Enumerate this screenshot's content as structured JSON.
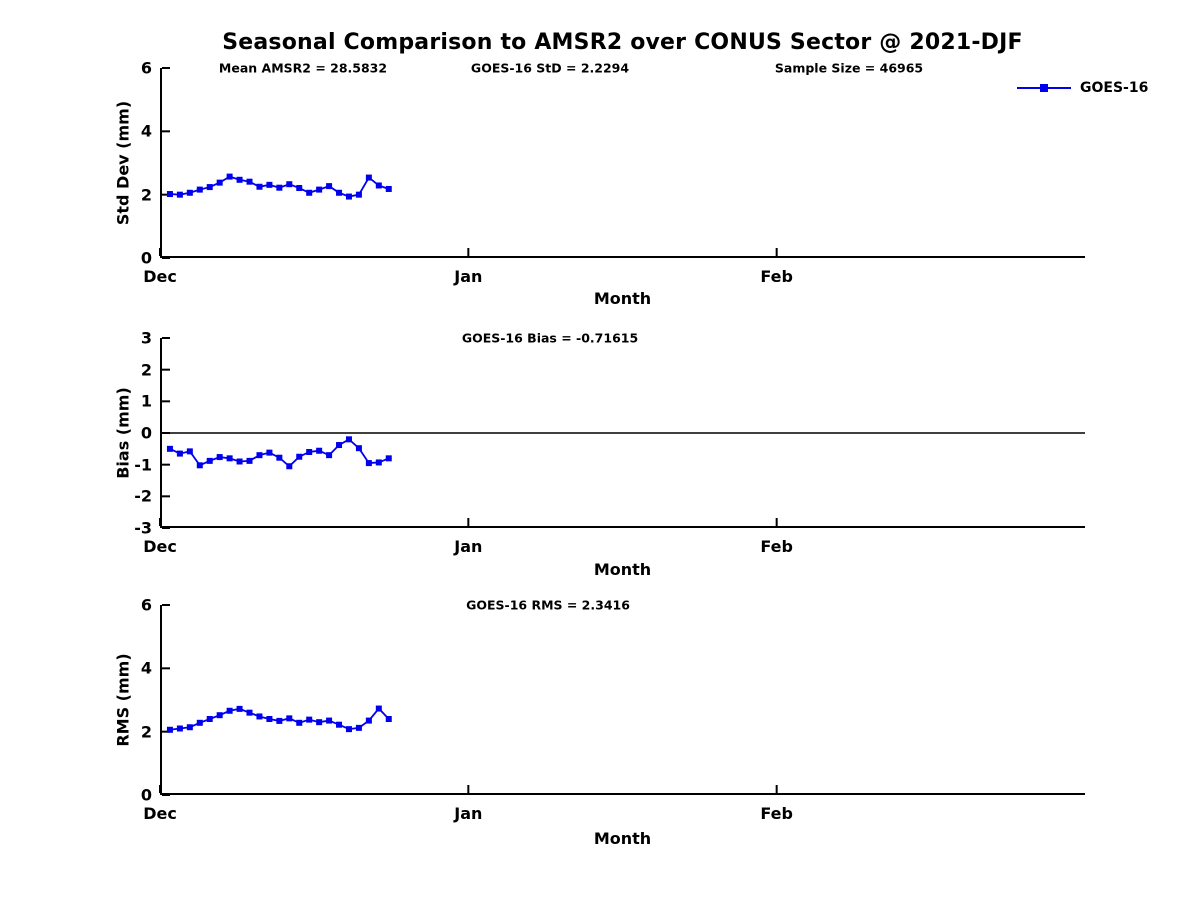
{
  "title": "Seasonal Comparison to AMSR2 over CONUS Sector @ 2021-DJF",
  "legend": {
    "label": "GOES-16"
  },
  "colors": {
    "series": "#0000EE",
    "axis": "#000000"
  },
  "chart_data": [
    {
      "type": "line",
      "panel": "std-dev",
      "annotations": [
        "Mean AMSR2 = 28.5832",
        "GOES-16 StD = 2.2294",
        "Sample Size = 46965"
      ],
      "ylabel": "Std Dev (mm)",
      "xlabel": "Month",
      "ylim": [
        0,
        6
      ],
      "yticks": [
        0,
        2,
        4,
        6
      ],
      "xtick_labels": [
        "Dec",
        "Jan",
        "Feb"
      ],
      "xtick_days": [
        0,
        31,
        62
      ],
      "xlim_days": [
        0,
        93
      ],
      "zero_line": false,
      "grid": false,
      "series": [
        {
          "name": "GOES-16",
          "color": "#0000EE",
          "marker": "square",
          "x_days": [
            1,
            2,
            3,
            4,
            5,
            6,
            7,
            8,
            9,
            10,
            11,
            12,
            13,
            14,
            15,
            16,
            17,
            18,
            19,
            20,
            21,
            22,
            23
          ],
          "values": [
            2.02,
            2.0,
            2.06,
            2.16,
            2.24,
            2.38,
            2.57,
            2.47,
            2.41,
            2.25,
            2.31,
            2.22,
            2.33,
            2.21,
            2.06,
            2.16,
            2.27,
            2.06,
            1.94,
            2.0,
            2.54,
            2.29,
            2.18
          ]
        }
      ]
    },
    {
      "type": "line",
      "panel": "bias",
      "annotations": [
        "GOES-16 Bias = -0.71615"
      ],
      "ylabel": "Bias (mm)",
      "xlabel": "Month",
      "ylim": [
        -3,
        3
      ],
      "yticks": [
        -3,
        -2,
        -1,
        0,
        1,
        2,
        3
      ],
      "xtick_labels": [
        "Dec",
        "Jan",
        "Feb"
      ],
      "xtick_days": [
        0,
        31,
        62
      ],
      "xlim_days": [
        0,
        93
      ],
      "zero_line": true,
      "grid": false,
      "series": [
        {
          "name": "GOES-16",
          "color": "#0000EE",
          "marker": "square",
          "x_days": [
            1,
            2,
            3,
            4,
            5,
            6,
            7,
            8,
            9,
            10,
            11,
            12,
            13,
            14,
            15,
            16,
            17,
            18,
            19,
            20,
            21,
            22,
            23
          ],
          "values": [
            -0.5,
            -0.65,
            -0.58,
            -1.02,
            -0.88,
            -0.76,
            -0.8,
            -0.9,
            -0.88,
            -0.7,
            -0.62,
            -0.78,
            -1.05,
            -0.75,
            -0.6,
            -0.56,
            -0.7,
            -0.38,
            -0.2,
            -0.48,
            -0.95,
            -0.93,
            -0.8
          ]
        }
      ]
    },
    {
      "type": "line",
      "panel": "rms",
      "annotations": [
        "GOES-16 RMS = 2.3416"
      ],
      "ylabel": "RMS (mm)",
      "xlabel": "Month",
      "ylim": [
        0,
        6
      ],
      "yticks": [
        0,
        2,
        4,
        6
      ],
      "xtick_labels": [
        "Dec",
        "Jan",
        "Feb"
      ],
      "xtick_days": [
        0,
        31,
        62
      ],
      "xlim_days": [
        0,
        93
      ],
      "zero_line": false,
      "grid": false,
      "series": [
        {
          "name": "GOES-16",
          "color": "#0000EE",
          "marker": "square",
          "x_days": [
            1,
            2,
            3,
            4,
            5,
            6,
            7,
            8,
            9,
            10,
            11,
            12,
            13,
            14,
            15,
            16,
            17,
            18,
            19,
            20,
            21,
            22,
            23
          ],
          "values": [
            2.06,
            2.1,
            2.14,
            2.28,
            2.4,
            2.52,
            2.66,
            2.72,
            2.6,
            2.48,
            2.4,
            2.34,
            2.42,
            2.28,
            2.38,
            2.3,
            2.35,
            2.22,
            2.08,
            2.12,
            2.35,
            2.73,
            2.4
          ]
        }
      ]
    }
  ]
}
